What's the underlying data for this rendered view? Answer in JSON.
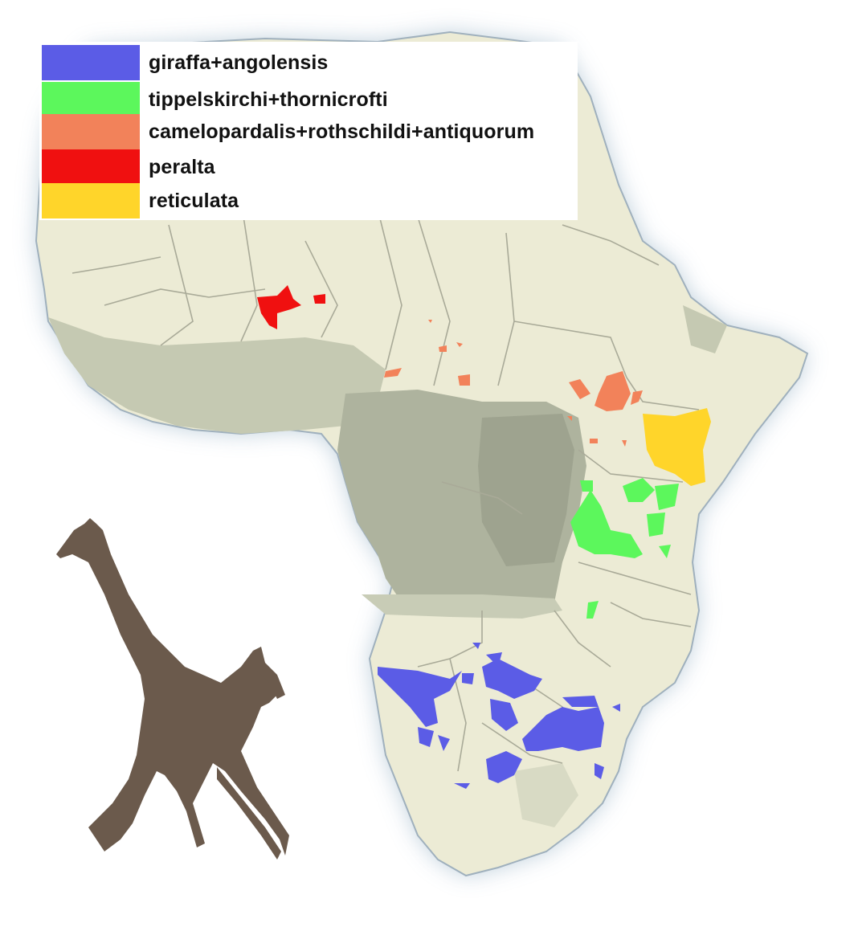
{
  "legend": {
    "items": [
      {
        "label": "giraffa+angolensis",
        "color": "#5b5ce6"
      },
      {
        "label": "tippelskirchi+thornicrofti",
        "color": "#5cf75c"
      },
      {
        "label": "camelopardalis+rothschildi+antiquorum",
        "color": "#f2825a"
      },
      {
        "label": "peralta",
        "color": "#f01010"
      },
      {
        "label": "reticulata",
        "color": "#ffd52a"
      }
    ]
  },
  "map": {
    "land_color": "#ecebd5",
    "forest_color": "#c2c7b0",
    "dense_forest_color": "#a8ad99",
    "ocean_glow_color": "#c7d3de",
    "border_color": "#a8a898",
    "giraffe_silhouette_color": "#6b5a4c"
  }
}
